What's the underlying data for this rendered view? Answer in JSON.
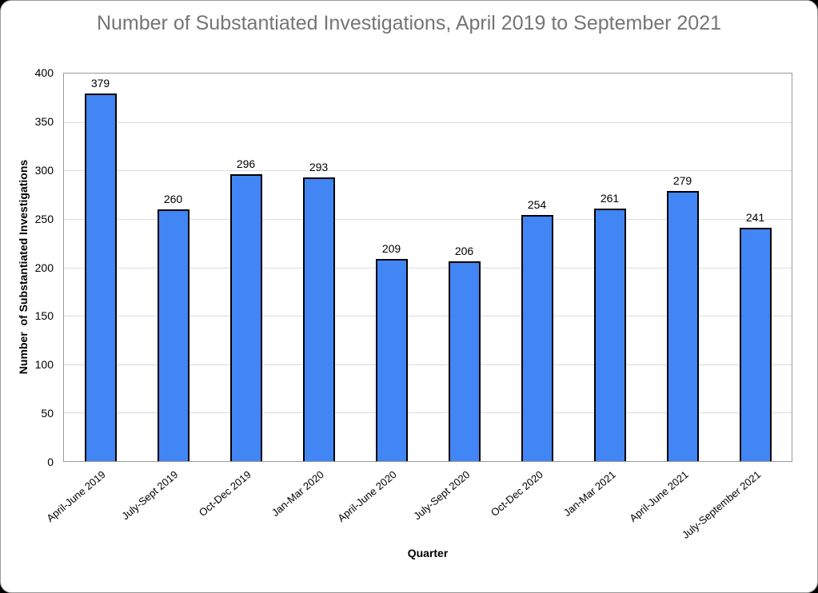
{
  "window": {
    "background_color": "#000000",
    "card_background": "#ffffff",
    "card_border_color": "#999999"
  },
  "chart_data": {
    "type": "bar",
    "title": "Number of Substantiated Investigations, April 2019 to September 2021",
    "categories": [
      "April-June 2019",
      "July-Sept 2019",
      "Oct-Dec 2019",
      "Jan-Mar 2020",
      "April-June 2020",
      "July-Sept 2020",
      "Oct-Dec 2020",
      "Jan-Mar 2021",
      "April-June 2021",
      "July-September 2021"
    ],
    "values": [
      379,
      260,
      296,
      293,
      209,
      206,
      254,
      261,
      279,
      241
    ],
    "xlabel": "Quarter",
    "ylabel": "Number  of Substantiated Investigations",
    "ylim": [
      0,
      400
    ],
    "ytick_step": 50,
    "yticks": [
      0,
      50,
      100,
      150,
      200,
      250,
      300,
      350,
      400
    ],
    "grid": "horizontal",
    "legend_position": "none",
    "data_labels": "above-bars",
    "x_label_rotation_deg": -40,
    "title_color": "#757575",
    "bar_color": "#4285f4",
    "bar_border_color": "#000000",
    "gridline_color": "#dcdcdc",
    "plot_border_color": "#999999",
    "text_color": "#000000"
  }
}
